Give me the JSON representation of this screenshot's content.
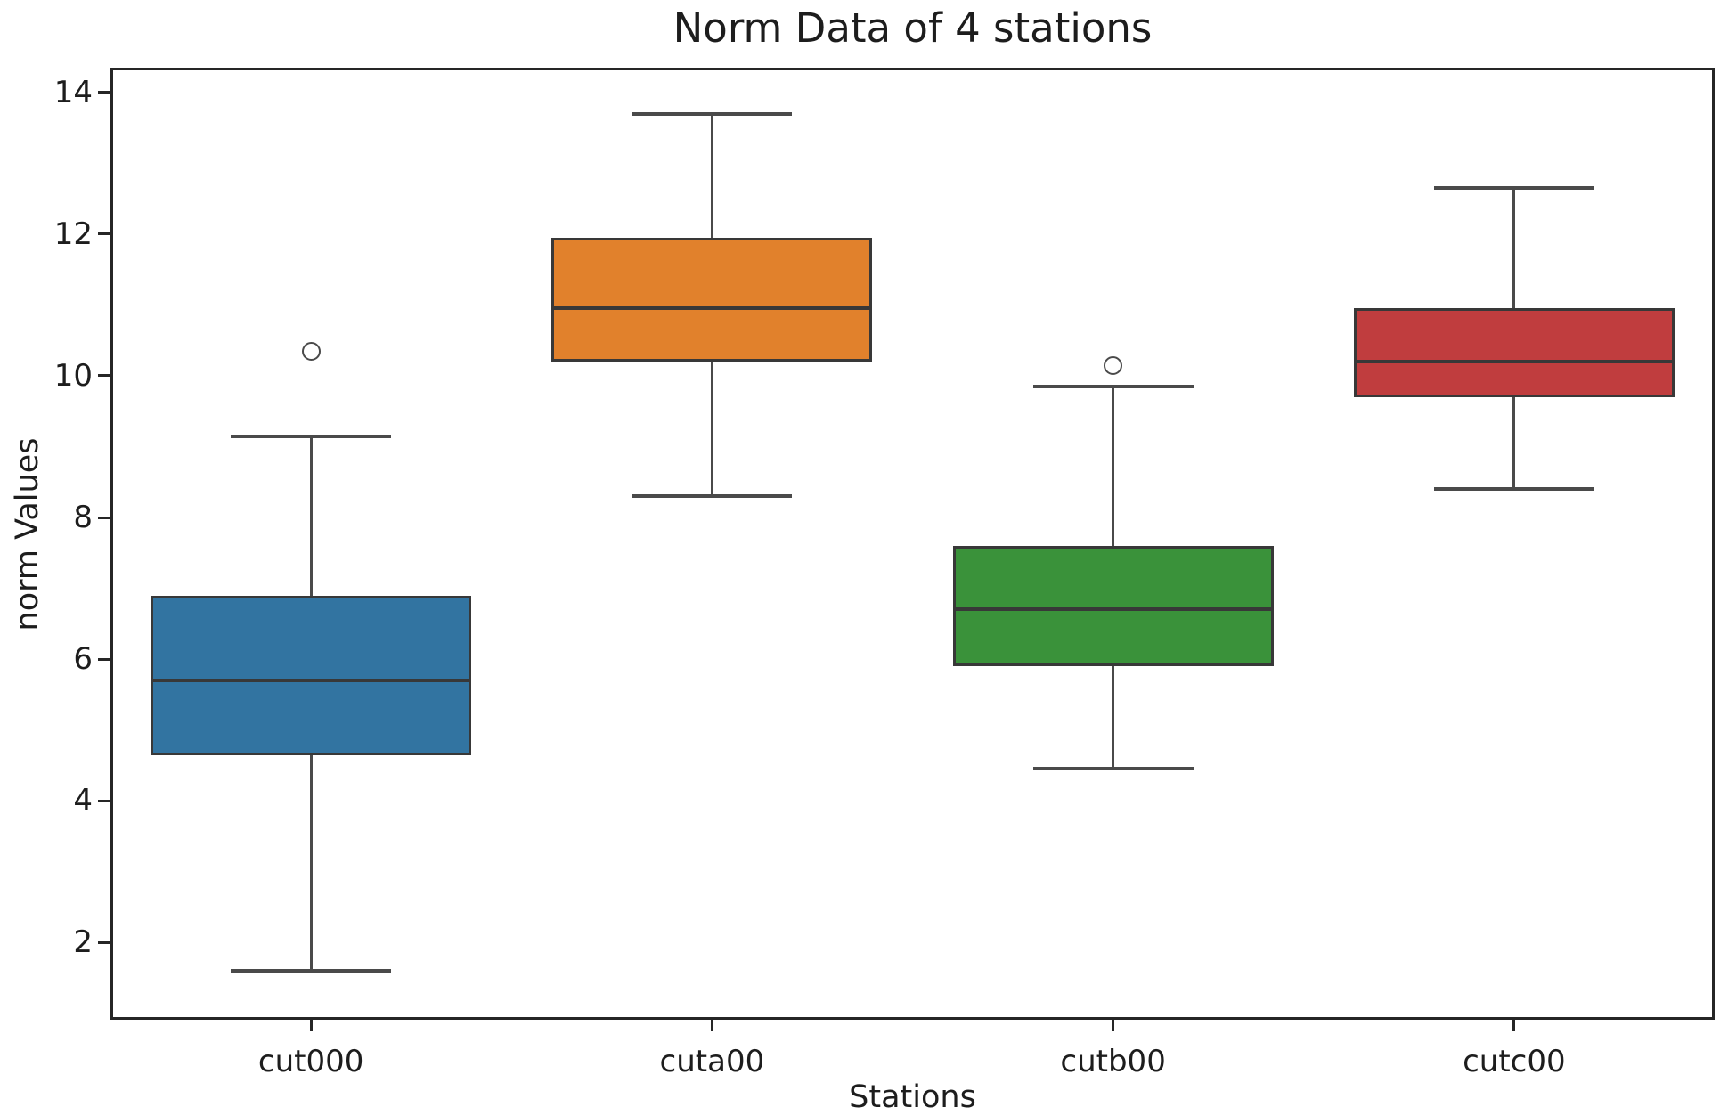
{
  "chart_data": {
    "type": "boxplot",
    "title": "Norm Data of 4 stations",
    "xlabel": "Stations",
    "ylabel": "norm Values",
    "categories": [
      "cut000",
      "cuta00",
      "cutb00",
      "cutc00"
    ],
    "y_ticks": [
      2,
      4,
      6,
      8,
      10,
      12,
      14
    ],
    "ylim": [
      0.91,
      14.35
    ],
    "grid": false,
    "legend": null,
    "series": [
      {
        "name": "cut000",
        "color": "#3274a1",
        "whisker_low": 1.6,
        "q1": 4.65,
        "median": 5.7,
        "q3": 6.9,
        "whisker_high": 9.15,
        "outliers": [
          10.35
        ]
      },
      {
        "name": "cuta00",
        "color": "#e1812c",
        "whisker_low": 8.3,
        "q1": 10.2,
        "median": 10.95,
        "q3": 11.95,
        "whisker_high": 13.7,
        "outliers": []
      },
      {
        "name": "cutb00",
        "color": "#3a923a",
        "whisker_low": 4.45,
        "q1": 5.9,
        "median": 6.7,
        "q3": 7.6,
        "whisker_high": 9.85,
        "outliers": [
          10.15
        ]
      },
      {
        "name": "cutc00",
        "color": "#c03d3e",
        "whisker_low": 8.4,
        "q1": 9.7,
        "median": 10.2,
        "q3": 10.95,
        "whisker_high": 12.65,
        "outliers": []
      }
    ],
    "colors": {
      "box_edge": "#383838",
      "whisker": "#4a4a4a",
      "spine": "#262626",
      "text": "#1d1d1d",
      "background": "#ffffff"
    }
  }
}
